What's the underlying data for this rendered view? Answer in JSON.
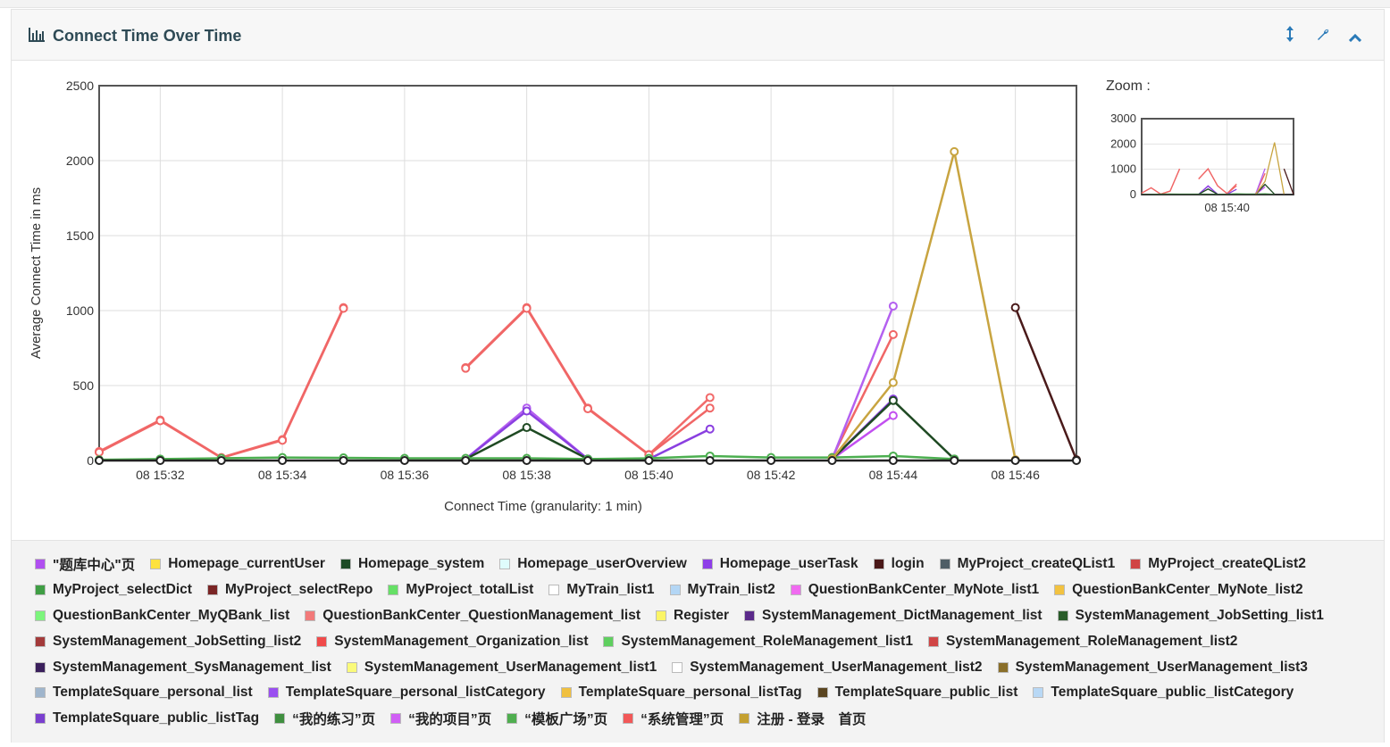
{
  "panel": {
    "title": "Connect Time Over Time",
    "icons": [
      "bar-chart-icon",
      "expand-vertical-icon",
      "wrench-icon",
      "chevron-up-icon"
    ]
  },
  "zoom": {
    "label": "Zoom :",
    "x_tick": "08 15:40",
    "y_ticks": [
      0,
      1000,
      2000,
      3000
    ]
  },
  "chart_data": {
    "type": "line",
    "xlabel": "Connect Time (granularity: 1 min)",
    "ylabel": "Average Connect Time in ms",
    "ylim": [
      0,
      2500
    ],
    "yticks": [
      0,
      500,
      1000,
      1500,
      2000,
      2500
    ],
    "xlim_minutes": [
      "08 15:31",
      "08 15:47"
    ],
    "xticks": [
      "08 15:32",
      "08 15:34",
      "08 15:36",
      "08 15:38",
      "08 15:40",
      "08 15:42",
      "08 15:44",
      "08 15:46"
    ],
    "x": [
      "08 15:31",
      "08 15:32",
      "08 15:33",
      "08 15:34",
      "08 15:35",
      "08 15:36",
      "08 15:37",
      "08 15:38",
      "08 15:39",
      "08 15:40",
      "08 15:41",
      "08 15:42",
      "08 15:43",
      "08 15:44",
      "08 15:45",
      "08 15:46",
      "08 15:47"
    ],
    "series": [
      {
        "name": "“系统管理”页",
        "color": "#f26b6b",
        "values": [
          60,
          270,
          20,
          140,
          1020,
          null,
          620,
          1020,
          350,
          40,
          420,
          null,
          20,
          null,
          null,
          null,
          null
        ]
      },
      {
        "name": "SystemManagement_Organization_list",
        "color": "#f06666",
        "values": [
          55,
          265,
          18,
          135,
          1015,
          null,
          615,
          1015,
          345,
          38,
          350,
          null,
          18,
          840,
          null,
          null,
          null
        ]
      },
      {
        "name": "\"题库中心\"页",
        "color": "#b460f0",
        "values": [
          null,
          null,
          null,
          null,
          null,
          null,
          10,
          350,
          10,
          null,
          null,
          null,
          10,
          1030,
          null,
          null,
          null
        ]
      },
      {
        "name": "Homepage_userTask",
        "color": "#8a3fe0",
        "values": [
          null,
          null,
          null,
          null,
          null,
          null,
          10,
          330,
          10,
          10,
          210,
          null,
          10,
          410,
          null,
          null,
          null
        ]
      },
      {
        "name": "“我的项目”页",
        "color": "#c24ff0",
        "values": [
          null,
          null,
          null,
          null,
          null,
          null,
          null,
          null,
          null,
          null,
          null,
          null,
          10,
          300,
          null,
          null,
          null
        ]
      },
      {
        "name": "Homepage_system",
        "color": "#1f4a23",
        "values": [
          null,
          null,
          null,
          null,
          null,
          null,
          10,
          220,
          10,
          null,
          null,
          null,
          10,
          400,
          10,
          null,
          null
        ]
      },
      {
        "name": "MyProject_selectDict",
        "color": "#4caf50",
        "values": [
          5,
          10,
          15,
          20,
          18,
          15,
          15,
          15,
          10,
          15,
          30,
          20,
          20,
          30,
          10,
          null,
          null
        ]
      },
      {
        "name": "注册 - 登录　首页",
        "color": "#c8a440",
        "values": [
          null,
          null,
          null,
          null,
          null,
          null,
          null,
          null,
          null,
          null,
          null,
          null,
          10,
          520,
          2060,
          5,
          null
        ]
      },
      {
        "name": "login",
        "color": "#4a1a1a",
        "values": [
          null,
          null,
          null,
          null,
          null,
          null,
          null,
          null,
          null,
          null,
          null,
          null,
          null,
          null,
          null,
          1020,
          5
        ]
      },
      {
        "name": "MyProject_totalList",
        "color": "#222222",
        "values": [
          0,
          0,
          0,
          0,
          0,
          0,
          0,
          0,
          0,
          0,
          0,
          0,
          0,
          0,
          0,
          0,
          0
        ]
      }
    ],
    "legend": [
      {
        "label": "\"题库中心\"页",
        "color": "#b04ff0"
      },
      {
        "label": "Homepage_currentUser",
        "color": "#fde23d"
      },
      {
        "label": "Homepage_system",
        "color": "#1d4a26"
      },
      {
        "label": "Homepage_userOverview",
        "color": "#dffcfc"
      },
      {
        "label": "Homepage_userTask",
        "color": "#8e3ee8"
      },
      {
        "label": "login",
        "color": "#4a1818"
      },
      {
        "label": "MyProject_createQList1",
        "color": "#4f5e66"
      },
      {
        "label": "MyProject_createQList2",
        "color": "#d04545"
      },
      {
        "label": "MyProject_selectDict",
        "color": "#3f9e44"
      },
      {
        "label": "MyProject_selectRepo",
        "color": "#7a2525"
      },
      {
        "label": "MyProject_totalList",
        "color": "#66e066"
      },
      {
        "label": "MyTrain_list1",
        "color": "#ffffff"
      },
      {
        "label": "MyTrain_list2",
        "color": "#b3d6f5"
      },
      {
        "label": "QuestionBankCenter_MyNote_list1",
        "color": "#f06bf0"
      },
      {
        "label": "QuestionBankCenter_MyNote_list2",
        "color": "#f2c240"
      },
      {
        "label": "QuestionBankCenter_MyQBank_list",
        "color": "#7cf57c"
      },
      {
        "label": "QuestionBankCenter_QuestionManagement_list",
        "color": "#f27a7a"
      },
      {
        "label": "Register",
        "color": "#fbf566"
      },
      {
        "label": "SystemManagement_DictManagement_list",
        "color": "#5a2a8a"
      },
      {
        "label": "SystemManagement_JobSetting_list1",
        "color": "#2a5c2a"
      },
      {
        "label": "SystemManagement_JobSetting_list2",
        "color": "#a33a3a"
      },
      {
        "label": "SystemManagement_Organization_list",
        "color": "#f04a4a"
      },
      {
        "label": "SystemManagement_RoleManagement_list1",
        "color": "#5fcf5f"
      },
      {
        "label": "SystemManagement_RoleManagement_list2",
        "color": "#d04545"
      },
      {
        "label": "SystemManagement_SysManagement_list",
        "color": "#3a1f5c"
      },
      {
        "label": "SystemManagement_UserManagement_list1",
        "color": "#fafa7a"
      },
      {
        "label": "SystemManagement_UserManagement_list2",
        "color": "#ffffff"
      },
      {
        "label": "SystemManagement_UserManagement_list3",
        "color": "#8a6f2a"
      },
      {
        "label": "TemplateSquare_personal_list",
        "color": "#9fb5cc"
      },
      {
        "label": "TemplateSquare_personal_listCategory",
        "color": "#9a4ff0"
      },
      {
        "label": "TemplateSquare_personal_listTag",
        "color": "#f0c040"
      },
      {
        "label": "TemplateSquare_public_list",
        "color": "#5a4520"
      },
      {
        "label": "TemplateSquare_public_listCategory",
        "color": "#b8d8f5"
      },
      {
        "label": "TemplateSquare_public_listTag",
        "color": "#7a3fcf"
      },
      {
        "label": "“我的练习”页",
        "color": "#3f8f3f"
      },
      {
        "label": "“我的项目”页",
        "color": "#d05ff5"
      },
      {
        "label": "“模板广场”页",
        "color": "#4fae4f"
      },
      {
        "label": "“系统管理”页",
        "color": "#f25858"
      },
      {
        "label": "注册 - 登录　首页",
        "color": "#c4a030"
      }
    ]
  }
}
